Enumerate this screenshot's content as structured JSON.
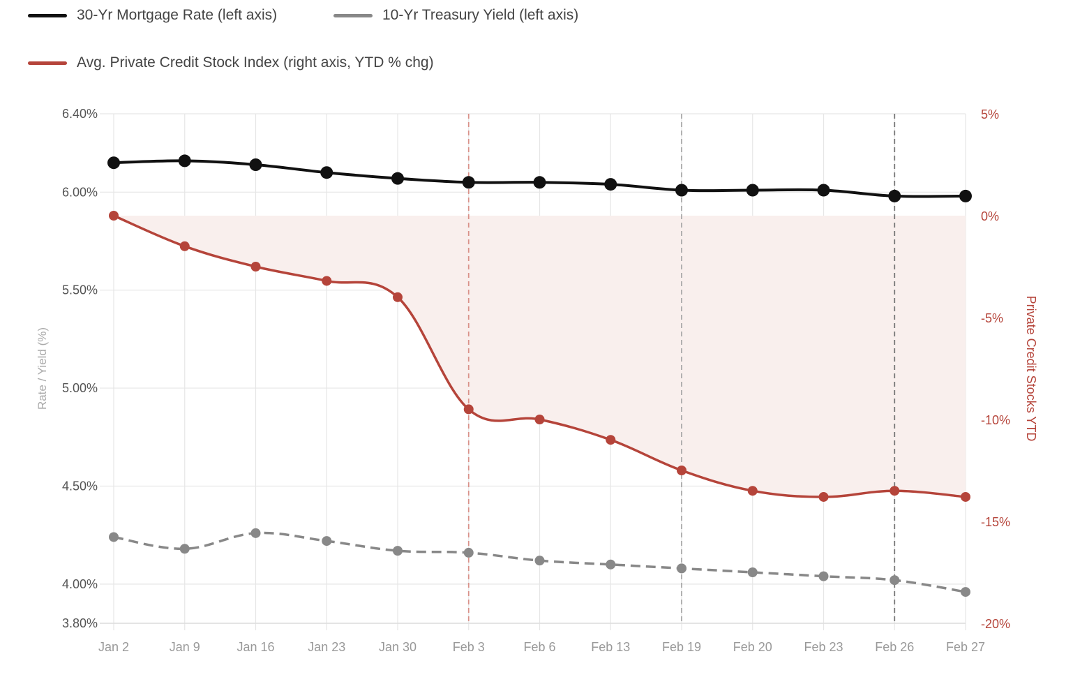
{
  "chart_data": {
    "type": "line",
    "categories": [
      "Jan 2",
      "Jan 9",
      "Jan 16",
      "Jan 23",
      "Jan 30",
      "Feb 3",
      "Feb 6",
      "Feb 13",
      "Feb 19",
      "Feb 20",
      "Feb 23",
      "Feb 26",
      "Feb 27"
    ],
    "series": [
      {
        "name": "30-Yr Mortgage Rate (left axis)",
        "axis": "left",
        "color": "#111111",
        "style": "solid",
        "values": [
          6.15,
          6.16,
          6.14,
          6.1,
          6.07,
          6.05,
          6.05,
          6.04,
          6.01,
          6.01,
          6.01,
          5.98,
          5.98
        ]
      },
      {
        "name": "10-Yr Treasury Yield (left axis)",
        "axis": "left",
        "color": "#888888",
        "style": "dashed",
        "values": [
          4.24,
          4.18,
          4.26,
          4.22,
          4.17,
          4.16,
          4.12,
          4.1,
          4.08,
          4.06,
          4.04,
          4.02,
          3.96
        ]
      },
      {
        "name": "Avg. Private Credit Stock Index (right axis, YTD % chg)",
        "axis": "right",
        "color": "#b5443a",
        "style": "solid",
        "fill": "#f9efed",
        "values": [
          0,
          -1.5,
          -2.5,
          -3.2,
          -4.0,
          -9.5,
          -10.0,
          -11.0,
          -12.5,
          -13.5,
          -13.8,
          -13.5,
          -13.8
        ]
      }
    ],
    "left_axis": {
      "label": "Rate / Yield (%)",
      "ylim": [
        3.8,
        6.4
      ],
      "ticks": [
        "6.40%",
        "6.00%",
        "5.50%",
        "5.00%",
        "4.50%",
        "4.00%",
        "3.80%"
      ],
      "tick_values": [
        6.4,
        6.0,
        5.5,
        5.0,
        4.5,
        4.0,
        3.8
      ]
    },
    "right_axis": {
      "label": "Private Credit Stocks YTD",
      "ylim": [
        -20,
        5
      ],
      "ticks": [
        "5%",
        "0%",
        "-5%",
        "-10%",
        "-15%",
        "-20%"
      ],
      "tick_values": [
        5,
        0,
        -5,
        -10,
        -15,
        -20
      ],
      "color": "#b5443a"
    },
    "markers": [
      {
        "category": "Feb 3",
        "color": "#d9928a"
      },
      {
        "category": "Feb 19",
        "color": "#aaaaaa"
      },
      {
        "category": "Feb 26",
        "color": "#777777"
      }
    ],
    "grid": true,
    "legend_placement": "top-left"
  }
}
